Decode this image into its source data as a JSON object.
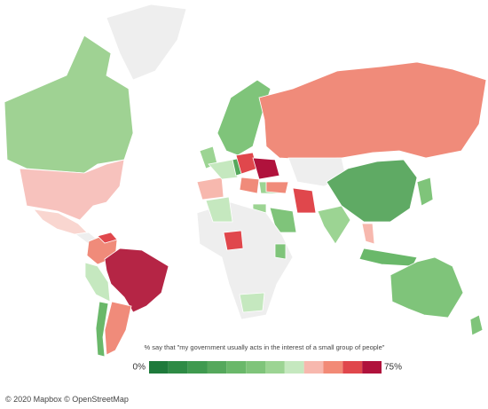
{
  "legend": {
    "title": "% say that \"my government usually acts in the interest of a small group of people\"",
    "min": {
      "value": 0,
      "label": "0%"
    },
    "max": {
      "value": 75,
      "label": "75%"
    },
    "colors": [
      "#1e7a3b",
      "#2e8b45",
      "#3f9a4f",
      "#55a85c",
      "#6ab86a",
      "#7fc47a",
      "#9cd493",
      "#c5e8bf",
      "#f7b8ae",
      "#f28a76",
      "#e0474c",
      "#b0123c"
    ]
  },
  "attribution": "© 2020 Mapbox © OpenStreetMap"
}
